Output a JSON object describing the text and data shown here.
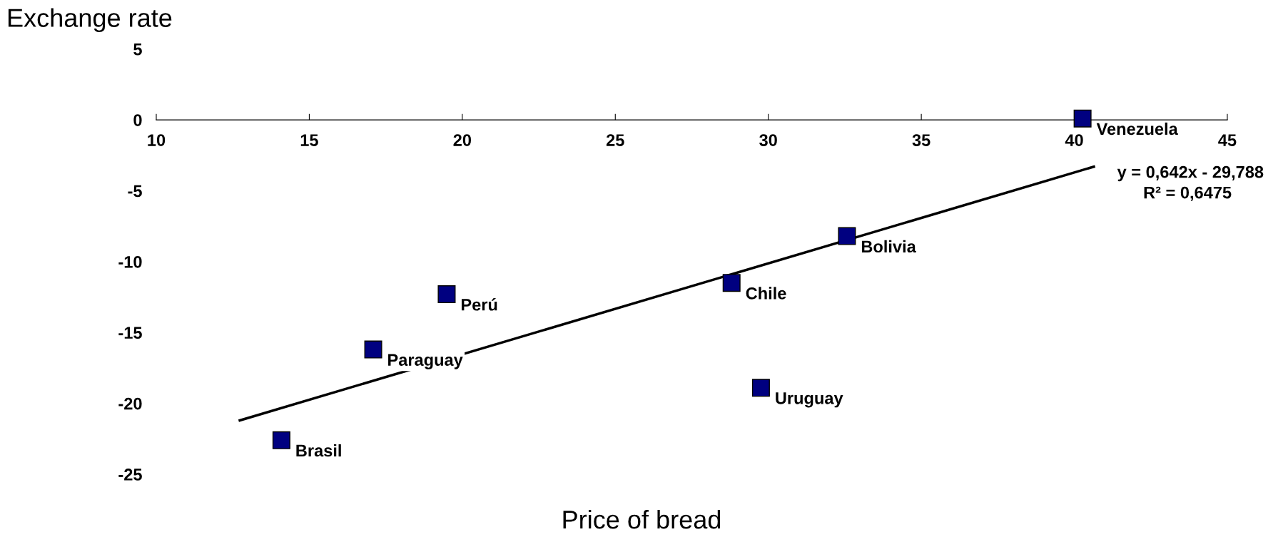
{
  "chart_data": {
    "type": "scatter",
    "xlabel": "Price of bread",
    "ylabel": "Exchange rate",
    "xlim": [
      10,
      45
    ],
    "xticks": [
      10,
      15,
      20,
      25,
      30,
      35,
      40,
      45
    ],
    "ylim": [
      -25,
      5
    ],
    "yticks": [
      -25,
      -20,
      -15,
      -10,
      -5,
      0,
      5
    ],
    "grid": false,
    "legend": false,
    "marker": "square",
    "series": [
      {
        "name": "Venezuela",
        "color": "#000080",
        "x": [
          40.27
        ],
        "values": [
          0.1
        ]
      },
      {
        "name": "Bolivia",
        "color": "#000080",
        "x": [
          32.57
        ],
        "values": [
          -8.2
        ]
      },
      {
        "name": "Chile",
        "color": "#000080",
        "x": [
          28.8
        ],
        "values": [
          -11.5
        ]
      },
      {
        "name": "Uruguay",
        "color": "#000080",
        "x": [
          29.76
        ],
        "values": [
          -18.9
        ]
      },
      {
        "name": "Perú",
        "color": "#000080",
        "x": [
          19.49
        ],
        "values": [
          -12.3
        ]
      },
      {
        "name": "Paraguay",
        "color": "#000080",
        "x": [
          17.09
        ],
        "values": [
          -16.2
        ]
      },
      {
        "name": "Brasil",
        "color": "#000080",
        "x": [
          14.09
        ],
        "values": [
          -22.6
        ]
      },
      {
        "type": "line",
        "color": "#000000",
        "x": [
          12.73,
          40.64
        ],
        "values": [
          -21.2,
          -3.3
        ],
        "line_style": "solid",
        "marker": "none"
      }
    ],
    "annotations": [
      "y = 0,642x - 29,788",
      "R² = 0,6475"
    ]
  }
}
